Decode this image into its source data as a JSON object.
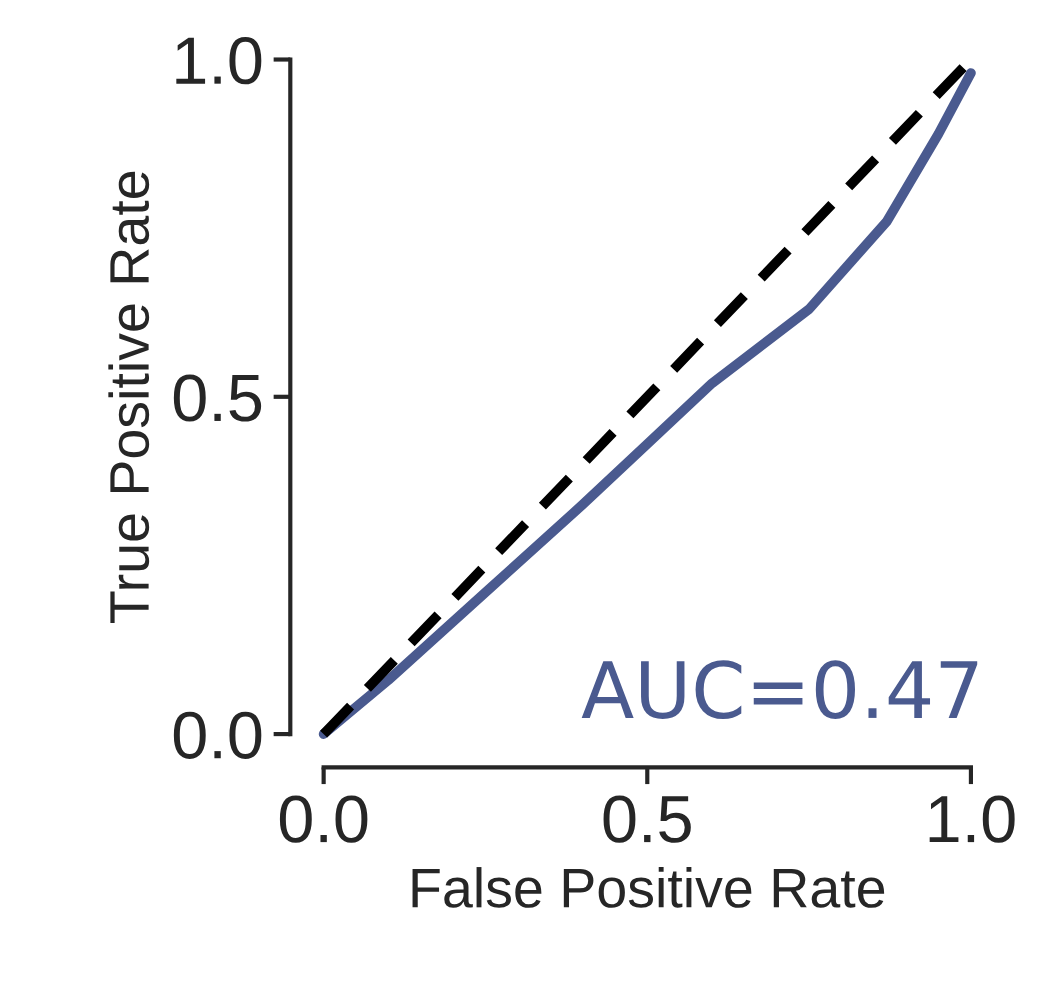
{
  "chart_data": {
    "type": "line",
    "xlabel": "False Positive Rate",
    "ylabel": "True Positive Rate",
    "xlim": [
      0,
      1
    ],
    "ylim": [
      0,
      1
    ],
    "xticks": [
      {
        "value": 0,
        "label": "0.0"
      },
      0.5,
      {
        "value": 1,
        "label": "1.0"
      }
    ],
    "yticks": [
      {
        "value": 0,
        "label": "0.0"
      },
      0.5,
      {
        "value": 1,
        "label": "1.0"
      }
    ],
    "series": [
      {
        "color": "#4a5a8f",
        "x": [
          0,
          0.1,
          0.25,
          0.4,
          0.5,
          0.6,
          0.75,
          0.87,
          0.95,
          1.0
        ],
        "values": [
          0,
          0.08,
          0.21,
          0.34,
          0.43,
          0.52,
          0.63,
          0.76,
          0.89,
          0.98
        ],
        "line_style": "solid"
      },
      {
        "color": "#000000",
        "x": [
          0,
          1
        ],
        "values": [
          0,
          1
        ],
        "line_style": "dashed"
      }
    ],
    "annotations": [
      "AUC=0.47"
    ],
    "grid": false
  }
}
